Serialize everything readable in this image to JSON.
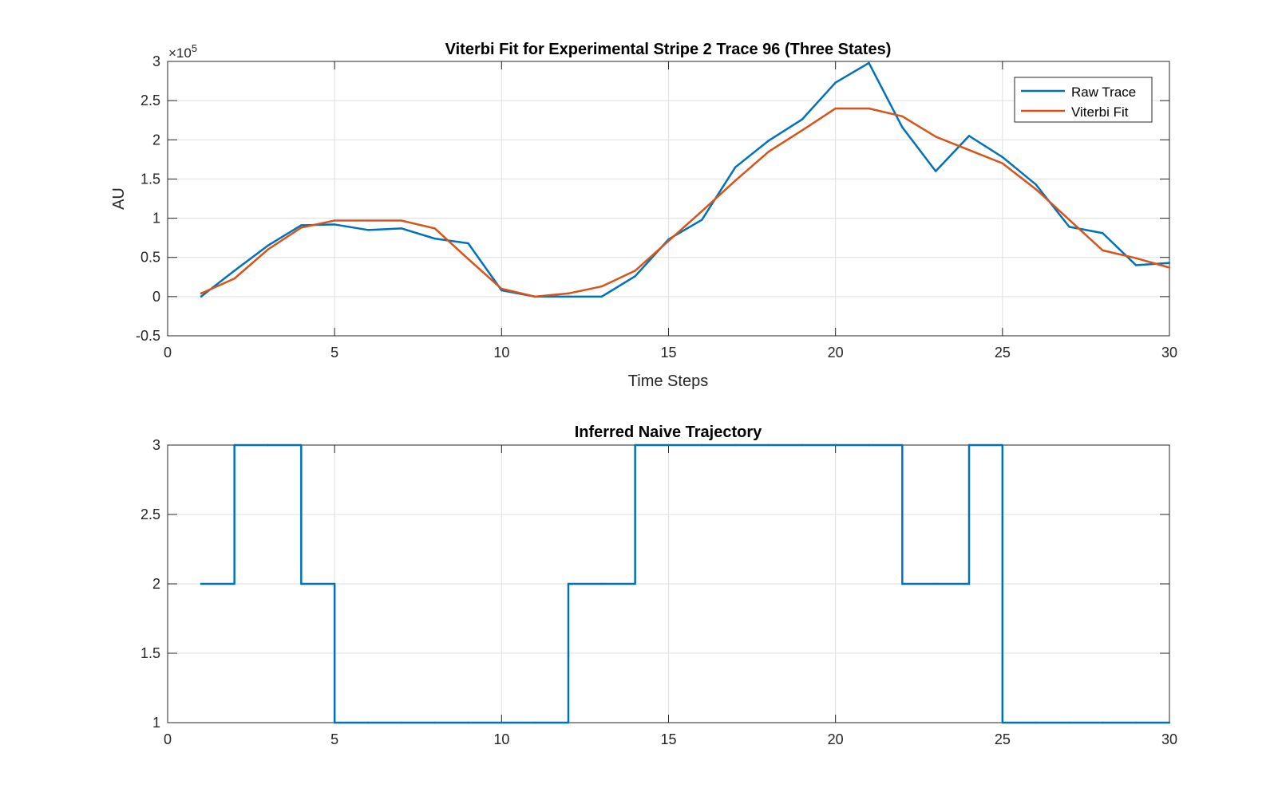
{
  "chart_data": [
    {
      "type": "line",
      "title": "Viterbi Fit for Experimental Stripe 2 Trace 96 (Three States)",
      "xlabel": "Time Steps",
      "ylabel": "AU",
      "y_exponent_label": "×10",
      "y_exponent": "5",
      "xlim": [
        0,
        30
      ],
      "ylim": [
        -50000,
        300000
      ],
      "xticks": [
        "0",
        "5",
        "10",
        "15",
        "20",
        "25",
        "30"
      ],
      "yticks": [
        "-0.5",
        "0",
        "0.5",
        "1",
        "1.5",
        "2",
        "2.5",
        "3"
      ],
      "grid": true,
      "legend_position": "top-right",
      "x": [
        1,
        2,
        3,
        4,
        5,
        6,
        7,
        8,
        9,
        10,
        11,
        12,
        13,
        14,
        15,
        16,
        17,
        18,
        19,
        20,
        21,
        22,
        23,
        24,
        25,
        26,
        27,
        28,
        29,
        30
      ],
      "series": [
        {
          "name": "Raw Trace",
          "color": "#0072BD",
          "values": [
            0,
            33000,
            65000,
            91000,
            92000,
            85000,
            87000,
            74000,
            68000,
            8000,
            0,
            0,
            0,
            26000,
            73000,
            98000,
            165000,
            199000,
            226000,
            273000,
            298000,
            216000,
            160000,
            205000,
            178000,
            143000,
            89000,
            81000,
            40000,
            43000
          ]
        },
        {
          "name": "Viterbi Fit",
          "color": "#D95319",
          "values": [
            4000,
            23000,
            60000,
            88000,
            97000,
            97000,
            97000,
            87000,
            48000,
            10000,
            0,
            4000,
            13000,
            33000,
            71000,
            109000,
            148000,
            185000,
            212000,
            240000,
            240000,
            230000,
            204000,
            187000,
            170000,
            137000,
            98000,
            59000,
            49000,
            37000
          ]
        }
      ]
    },
    {
      "type": "line",
      "title": "Inferred Naive Trajectory",
      "xlabel": "",
      "ylabel": "",
      "xlim": [
        0,
        30
      ],
      "ylim": [
        1,
        3
      ],
      "xticks": [
        "0",
        "5",
        "10",
        "15",
        "20",
        "25",
        "30"
      ],
      "yticks": [
        "1",
        "1.5",
        "2",
        "2.5",
        "3"
      ],
      "grid": true,
      "step": true,
      "x": [
        1,
        2,
        3,
        4,
        5,
        6,
        7,
        8,
        9,
        10,
        11,
        12,
        13,
        14,
        15,
        16,
        17,
        18,
        19,
        20,
        21,
        22,
        23,
        24,
        25,
        26,
        27,
        28,
        29,
        30
      ],
      "series": [
        {
          "color": "#0072BD",
          "values": [
            2,
            3,
            3,
            2,
            1,
            1,
            1,
            1,
            1,
            1,
            1,
            2,
            2,
            3,
            3,
            3,
            3,
            3,
            3,
            3,
            3,
            2,
            2,
            3,
            1,
            1,
            1,
            1,
            1,
            1
          ]
        }
      ]
    }
  ]
}
